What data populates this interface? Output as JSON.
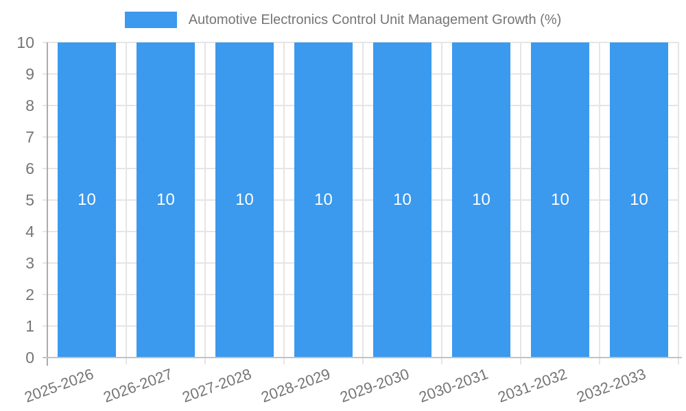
{
  "colors": {
    "bar": "#3b99ee",
    "title_text": "#757575",
    "tick_text": "#757575",
    "grid_line": "#e5e5e5",
    "y_axis_line": "#ababab",
    "x_axis_line": "#c2c2c2",
    "value_label": "#ffffff",
    "background": "#ffffff"
  },
  "chart_data": {
    "type": "bar",
    "title": "Automotive Electronics Control Unit Management Growth (%)",
    "categories": [
      "2025-2026",
      "2026-2027",
      "2027-2028",
      "2028-2029",
      "2029-2030",
      "2030-2031",
      "2031-2032",
      "2032-2033"
    ],
    "values": [
      10,
      10,
      10,
      10,
      10,
      10,
      10,
      10
    ],
    "value_labels": [
      "10",
      "10",
      "10",
      "10",
      "10",
      "10",
      "10",
      "10"
    ],
    "xlabel": "",
    "ylabel": "",
    "ylim": [
      0,
      10
    ],
    "yticks": [
      0,
      1,
      2,
      3,
      4,
      5,
      6,
      7,
      8,
      9,
      10
    ],
    "grid": true,
    "legend_position": "top",
    "x_tick_rotation_deg": -20,
    "bar_fraction_of_category": 0.74
  }
}
